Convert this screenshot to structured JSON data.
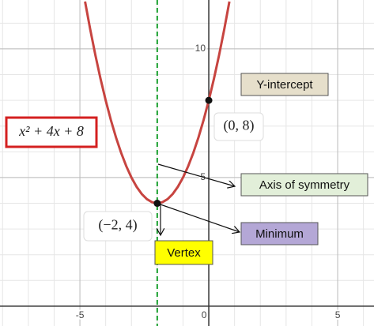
{
  "chart_data": {
    "type": "line",
    "x": [
      -4.8,
      -4.6,
      -4.4,
      -4.2,
      -4.0,
      -3.8,
      -3.6,
      -3.4,
      -3.2,
      -3.0,
      -2.8,
      -2.6,
      -2.4,
      -2.2,
      -2.0,
      -1.8,
      -1.6,
      -1.4,
      -1.2,
      -1.0,
      -0.8,
      -0.6,
      -0.4,
      -0.2,
      0,
      0.2,
      0.4,
      0.6,
      0.8
    ],
    "series": [
      {
        "name": "x² + 4x + 8",
        "color": "#c74440",
        "values": [
          11.84,
          10.76,
          9.76,
          8.84,
          8,
          7.24,
          6.56,
          5.96,
          5.44,
          5,
          4.64,
          4.36,
          4.16,
          4.04,
          4,
          4.04,
          4.16,
          4.36,
          4.64,
          5,
          5.44,
          5.96,
          6.56,
          7.24,
          8,
          8.84,
          9.76,
          10.76,
          11.84
        ]
      }
    ],
    "xlim": [
      -8.1,
      6.41
    ],
    "ylim": [
      -0.77,
      11.9
    ],
    "xticks": [
      -5,
      0,
      5
    ],
    "yticks": [
      5,
      10
    ],
    "minor_grid_x": [
      -8,
      -7,
      -6,
      -5,
      -4,
      -3,
      -2,
      -1,
      0,
      1,
      2,
      3,
      4,
      5,
      6
    ],
    "minor_grid_y": [
      0,
      1,
      2,
      3,
      4,
      5,
      6,
      7,
      8,
      9,
      10,
      11
    ],
    "grid": true,
    "symmetry_line": {
      "x": -2,
      "color": "#1aa02e"
    },
    "points": [
      {
        "x": -2,
        "y": 4,
        "label": "(−2, 4)"
      },
      {
        "x": 0,
        "y": 8,
        "label": "(0, 8)"
      }
    ],
    "annotations": [
      {
        "text": "Y-intercept",
        "color": "#e6dfcb"
      },
      {
        "text": "Axis of symmetry",
        "color": "#e2efd9"
      },
      {
        "text": "Minimum",
        "color": "#b4a7d6"
      },
      {
        "text": "Vertex",
        "color": "#ffff00"
      }
    ]
  }
}
